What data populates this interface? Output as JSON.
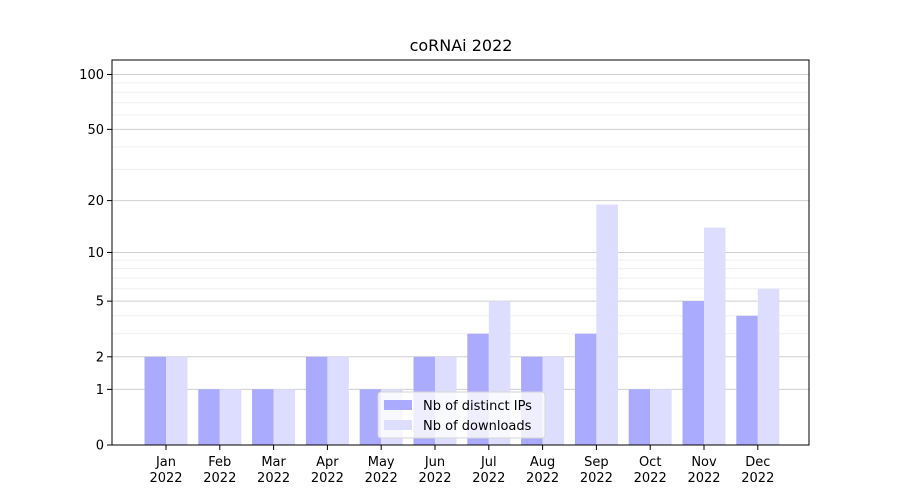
{
  "chart_data": {
    "type": "bar",
    "title": "coRNAi 2022",
    "xlabel": "",
    "ylabel": "",
    "yscale": "symlog",
    "ylim": [
      0,
      120
    ],
    "grid": "horizontal",
    "legend_position": "bottom-center",
    "yticks": [
      {
        "value": 0,
        "label": "0"
      },
      {
        "value": 1,
        "label": "1"
      },
      {
        "value": 2,
        "label": "2"
      },
      {
        "value": 5,
        "label": "5"
      },
      {
        "value": 10,
        "label": "10"
      },
      {
        "value": 20,
        "label": "20"
      },
      {
        "value": 50,
        "label": "50"
      },
      {
        "value": 100,
        "label": "100"
      }
    ],
    "categories": [
      {
        "month": "Jan",
        "year": "2022"
      },
      {
        "month": "Feb",
        "year": "2022"
      },
      {
        "month": "Mar",
        "year": "2022"
      },
      {
        "month": "Apr",
        "year": "2022"
      },
      {
        "month": "May",
        "year": "2022"
      },
      {
        "month": "Jun",
        "year": "2022"
      },
      {
        "month": "Jul",
        "year": "2022"
      },
      {
        "month": "Aug",
        "year": "2022"
      },
      {
        "month": "Sep",
        "year": "2022"
      },
      {
        "month": "Oct",
        "year": "2022"
      },
      {
        "month": "Nov",
        "year": "2022"
      },
      {
        "month": "Dec",
        "year": "2022"
      }
    ],
    "series": [
      {
        "name": "Nb of distinct IPs",
        "color": "#aaaaff",
        "values": [
          2,
          1,
          1,
          2,
          1,
          2,
          3,
          2,
          3,
          1,
          5,
          4
        ]
      },
      {
        "name": "Nb of downloads",
        "color": "#ddddff",
        "values": [
          2,
          1,
          1,
          2,
          1,
          2,
          5,
          2,
          19,
          1,
          14,
          6
        ]
      }
    ]
  }
}
